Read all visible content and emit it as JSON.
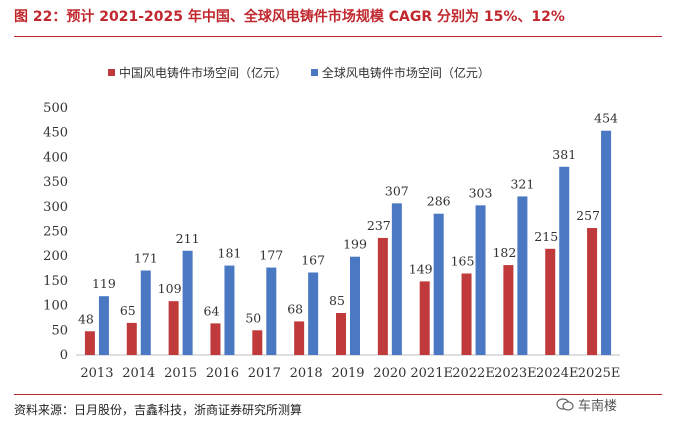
{
  "title": "图 22：预计 2021-2025 年中国、全球风电铸件市场规模 CAGR 分别为 15%、12%",
  "source": "资料来源：日月股份，吉鑫科技，浙商证券研究所测算",
  "watermark": "车南楼",
  "colors": {
    "title": "#c0282e",
    "china": "#c0393b",
    "global": "#4a78c2"
  },
  "chart_data": {
    "type": "bar",
    "categories": [
      "2013",
      "2014",
      "2015",
      "2016",
      "2017",
      "2018",
      "2019",
      "2020",
      "2021E",
      "2022E",
      "2023E",
      "2024E",
      "2025E"
    ],
    "series": [
      {
        "name": "中国风电铸件市场空间（亿元）",
        "color": "#c0393b",
        "values": [
          48,
          65,
          109,
          64,
          50,
          68,
          85,
          237,
          149,
          165,
          182,
          215,
          257
        ]
      },
      {
        "name": "全球风电铸件市场空间（亿元）",
        "color": "#4a78c2",
        "values": [
          119,
          171,
          211,
          181,
          177,
          167,
          199,
          307,
          286,
          303,
          321,
          381,
          454
        ]
      }
    ],
    "ylim": [
      0,
      500
    ],
    "yticks": [
      0,
      50,
      100,
      150,
      200,
      250,
      300,
      350,
      400,
      450,
      500
    ],
    "legend_position": "top",
    "grid": false,
    "data_labels": true
  }
}
